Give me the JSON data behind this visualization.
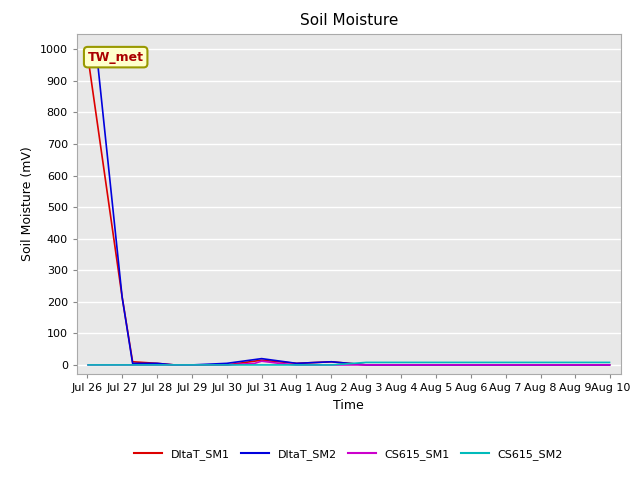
{
  "title": "Soil Moisture",
  "xlabel": "Time",
  "ylabel": "Soil Moisture (mV)",
  "annotation_text": "TW_met",
  "ylim": [
    -30,
    1050
  ],
  "figure_bg": "#ffffff",
  "plot_bg_color": "#e8e8e8",
  "grid_color": "#ffffff",
  "series": {
    "DltaT_SM1": {
      "color": "#dd0000",
      "x": [
        0,
        0.02,
        1.0,
        1.3,
        2.0,
        2.5,
        3,
        4,
        5,
        6,
        7,
        8,
        9,
        10,
        11,
        12,
        13,
        14,
        15
      ],
      "y": [
        975,
        975,
        215,
        10,
        5,
        0,
        0,
        0,
        15,
        5,
        10,
        0,
        0,
        0,
        0,
        0,
        0,
        0,
        0
      ]
    },
    "DltaT_SM2": {
      "color": "#0000dd",
      "x": [
        0,
        0.02,
        0.3,
        1.0,
        1.3,
        2.0,
        2.5,
        3,
        4,
        5,
        6,
        7,
        8,
        9,
        10,
        11,
        12,
        13,
        14,
        15
      ],
      "y": [
        955,
        955,
        955,
        215,
        5,
        5,
        0,
        0,
        5,
        20,
        5,
        10,
        0,
        0,
        0,
        0,
        0,
        0,
        0,
        0
      ]
    },
    "CS615_SM1": {
      "color": "#cc00cc",
      "x": [
        0,
        1,
        2,
        3,
        4,
        4.8,
        5,
        5.5,
        6,
        7,
        8,
        9,
        10,
        11,
        12,
        13,
        14,
        15
      ],
      "y": [
        0,
        0,
        0,
        0,
        0,
        5,
        12,
        5,
        0,
        0,
        0,
        0,
        0,
        0,
        0,
        0,
        0,
        0
      ]
    },
    "CS615_SM2": {
      "color": "#00bbbb",
      "x": [
        0,
        1,
        2,
        3,
        4,
        5,
        6,
        7,
        8,
        9,
        10,
        11,
        12,
        13,
        14,
        15
      ],
      "y": [
        0,
        0,
        0,
        0,
        0,
        0,
        0,
        0,
        8,
        8,
        8,
        8,
        8,
        8,
        8,
        8
      ]
    }
  },
  "xtick_positions": [
    0,
    1,
    2,
    3,
    4,
    5,
    6,
    7,
    8,
    9,
    10,
    11,
    12,
    13,
    14,
    15
  ],
  "xtick_labels": [
    "Jul 26",
    "Jul 27",
    "Jul 28",
    "Jul 29",
    "Jul 30",
    "Jul 31",
    "Aug 1",
    "Aug 2",
    "Aug 3",
    "Aug 4",
    "Aug 5",
    "Aug 6",
    "Aug 7",
    "Aug 8",
    "Aug 9",
    "Aug 10"
  ],
  "ytick_values": [
    0,
    100,
    200,
    300,
    400,
    500,
    600,
    700,
    800,
    900,
    1000
  ],
  "legend_entries": [
    "DltaT_SM1",
    "DltaT_SM2",
    "CS615_SM1",
    "CS615_SM2"
  ],
  "legend_colors": [
    "#dd0000",
    "#0000dd",
    "#cc00cc",
    "#00bbbb"
  ],
  "title_fontsize": 11,
  "label_fontsize": 9,
  "tick_fontsize": 8
}
